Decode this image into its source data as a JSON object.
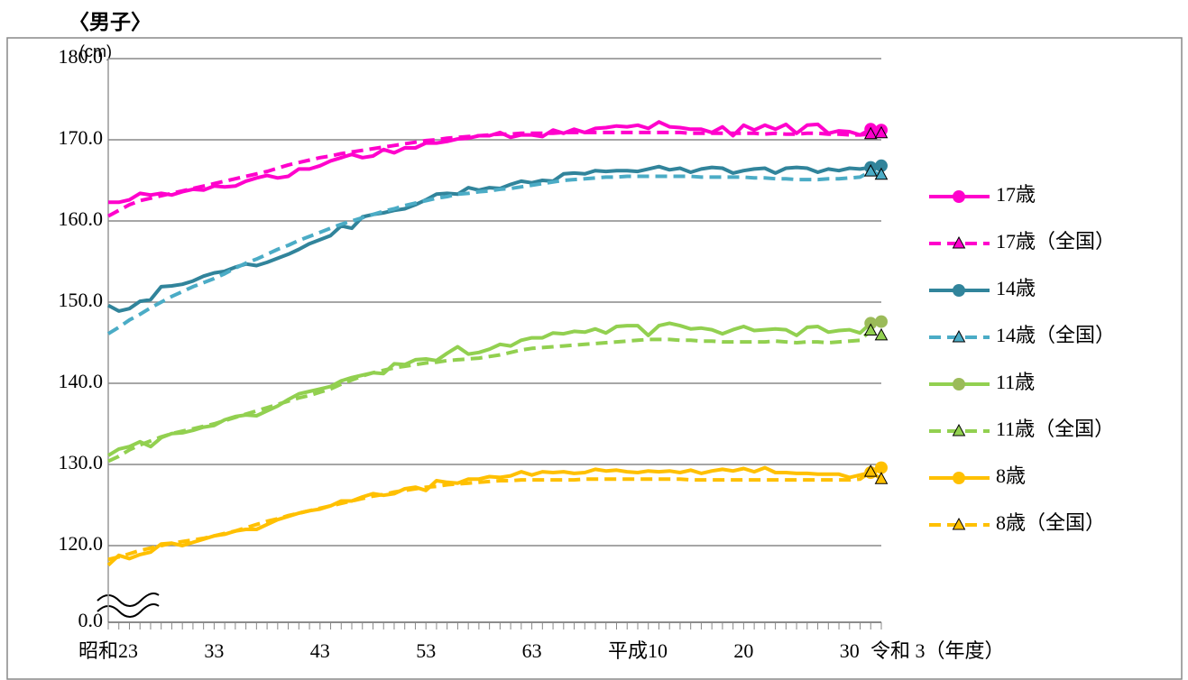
{
  "chart_data": {
    "type": "line",
    "title": "〈男子〉",
    "y_label": "(cm)",
    "categories": [
      "昭和23",
      null,
      null,
      null,
      null,
      null,
      null,
      null,
      null,
      null,
      "33",
      null,
      null,
      null,
      null,
      null,
      null,
      null,
      null,
      null,
      "43",
      null,
      null,
      null,
      null,
      null,
      null,
      null,
      null,
      null,
      "53",
      null,
      null,
      null,
      null,
      null,
      null,
      null,
      null,
      null,
      "63",
      null,
      null,
      null,
      null,
      null,
      null,
      null,
      null,
      null,
      "平成10",
      null,
      null,
      null,
      null,
      null,
      null,
      null,
      null,
      null,
      "20",
      null,
      null,
      null,
      null,
      null,
      null,
      null,
      null,
      null,
      "30",
      null,
      null,
      "令和 3（年度）"
    ],
    "ylim": [
      0,
      180
    ],
    "axis_break": true,
    "grid": true,
    "legend": "right",
    "yticks": [
      {
        "value": 0,
        "label": "0.0"
      },
      {
        "value": 120,
        "label": "120.0"
      },
      {
        "value": 130,
        "label": "130.0"
      },
      {
        "value": 140,
        "label": "140.0"
      },
      {
        "value": 150,
        "label": "150.0"
      },
      {
        "value": 160,
        "label": "160.0"
      },
      {
        "value": 170,
        "label": "170.0"
      },
      {
        "value": 180,
        "label": "180.0"
      }
    ],
    "series": [
      {
        "name": "17歳",
        "color": "#ff00cc",
        "marker": "circle",
        "dashed": false,
        "values": [
          162.3,
          162.3,
          162.6,
          163.4,
          163.2,
          163.4,
          163.2,
          163.6,
          163.9,
          163.8,
          164.3,
          164.2,
          164.3,
          164.9,
          165.3,
          165.6,
          165.3,
          165.5,
          166.4,
          166.4,
          166.8,
          167.4,
          167.8,
          168.2,
          167.8,
          168.0,
          168.8,
          168.4,
          169.0,
          169.0,
          169.6,
          169.6,
          169.8,
          170.1,
          170.2,
          170.5,
          170.5,
          170.9,
          170.3,
          170.6,
          170.6,
          170.4,
          171.2,
          170.8,
          171.3,
          170.9,
          171.4,
          171.5,
          171.7,
          171.6,
          171.8,
          171.4,
          172.2,
          171.6,
          171.5,
          171.3,
          171.3,
          170.9,
          171.6,
          170.5,
          171.8,
          171.2,
          171.8,
          171.3,
          171.9,
          170.8,
          171.8,
          171.9,
          170.8,
          171.1,
          171.0,
          170.6,
          171.3,
          171.2
        ]
      },
      {
        "name": "17歳（全国）",
        "color": "#ff00cc",
        "marker": "triangle",
        "dashed": true,
        "values": [
          160.6,
          161.3,
          162.0,
          162.5,
          162.8,
          163.1,
          163.4,
          163.7,
          164.0,
          164.3,
          164.6,
          164.9,
          165.2,
          165.5,
          165.8,
          166.1,
          166.5,
          166.9,
          167.2,
          167.5,
          167.8,
          168.0,
          168.3,
          168.5,
          168.7,
          168.9,
          169.1,
          169.3,
          169.5,
          169.7,
          169.9,
          170.0,
          170.2,
          170.3,
          170.4,
          170.5,
          170.6,
          170.7,
          170.7,
          170.8,
          170.8,
          170.8,
          170.8,
          170.9,
          170.9,
          170.9,
          170.9,
          170.9,
          170.9,
          170.9,
          170.9,
          170.9,
          170.9,
          170.9,
          170.9,
          170.8,
          170.8,
          170.8,
          170.8,
          170.8,
          170.8,
          170.8,
          170.7,
          170.8,
          170.7,
          170.7,
          170.8,
          170.8,
          170.7,
          170.7,
          170.6,
          170.6,
          170.7,
          170.8
        ]
      },
      {
        "name": "14歳",
        "color": "#31849b",
        "marker": "circle",
        "dashed": false,
        "values": [
          149.6,
          148.9,
          149.2,
          150.1,
          150.3,
          151.9,
          152.0,
          152.2,
          152.6,
          153.2,
          153.6,
          153.8,
          154.3,
          154.7,
          154.5,
          154.9,
          155.4,
          155.9,
          156.5,
          157.2,
          157.7,
          158.2,
          159.4,
          159.1,
          160.5,
          160.8,
          161.0,
          161.3,
          161.5,
          162.0,
          162.6,
          163.3,
          163.4,
          163.3,
          164.1,
          163.8,
          164.1,
          164.0,
          164.5,
          164.9,
          164.7,
          165.0,
          164.9,
          165.8,
          165.9,
          165.8,
          166.2,
          166.1,
          166.2,
          166.2,
          166.1,
          166.4,
          166.7,
          166.3,
          166.5,
          166.0,
          166.4,
          166.6,
          166.5,
          165.9,
          166.2,
          166.4,
          166.5,
          165.9,
          166.5,
          166.6,
          166.5,
          166.0,
          166.4,
          166.2,
          166.5,
          166.4,
          166.6,
          166.8
        ]
      },
      {
        "name": "14歳（全国）",
        "color": "#4bacc6",
        "marker": "triangle",
        "dashed": true,
        "values": [
          146.1,
          146.9,
          147.8,
          148.5,
          149.3,
          150.0,
          150.7,
          151.3,
          151.9,
          152.4,
          152.9,
          153.5,
          154.2,
          154.8,
          155.3,
          155.9,
          156.5,
          157.0,
          157.6,
          158.1,
          158.6,
          159.1,
          159.6,
          160.0,
          160.4,
          160.8,
          161.2,
          161.5,
          161.9,
          162.2,
          162.5,
          162.8,
          163.0,
          163.3,
          163.4,
          163.6,
          163.7,
          163.9,
          164.0,
          164.2,
          164.4,
          164.6,
          164.8,
          165.0,
          165.1,
          165.2,
          165.3,
          165.4,
          165.4,
          165.5,
          165.5,
          165.5,
          165.5,
          165.5,
          165.5,
          165.5,
          165.4,
          165.4,
          165.4,
          165.4,
          165.4,
          165.3,
          165.3,
          165.2,
          165.2,
          165.1,
          165.1,
          165.1,
          165.2,
          165.2,
          165.3,
          165.4,
          166.1,
          165.7
        ]
      },
      {
        "name": "11歳",
        "color": "#92d050",
        "marker": "circle",
        "marker_color": "#9bbb59",
        "dashed": false,
        "values": [
          131.1,
          131.9,
          132.2,
          132.8,
          132.2,
          133.3,
          133.8,
          133.9,
          134.2,
          134.6,
          134.8,
          135.5,
          135.9,
          136.1,
          136.0,
          136.6,
          137.2,
          138.0,
          138.7,
          139.0,
          139.3,
          139.6,
          140.3,
          140.7,
          141.0,
          141.3,
          141.2,
          142.4,
          142.3,
          142.9,
          143.0,
          142.8,
          143.7,
          144.5,
          143.6,
          143.8,
          144.2,
          144.8,
          144.6,
          145.3,
          145.6,
          145.6,
          146.2,
          146.1,
          146.4,
          146.3,
          146.7,
          146.2,
          147.0,
          147.1,
          147.1,
          145.9,
          147.1,
          147.4,
          147.1,
          146.7,
          146.8,
          146.6,
          146.1,
          146.6,
          147.0,
          146.5,
          146.6,
          146.7,
          146.6,
          145.9,
          146.9,
          147.0,
          146.3,
          146.5,
          146.6,
          146.2,
          147.4,
          147.6
        ]
      },
      {
        "name": "11歳（全国）",
        "color": "#92d050",
        "marker": "triangle",
        "dashed": true,
        "values": [
          130.4,
          131.0,
          131.8,
          132.4,
          132.9,
          133.4,
          133.8,
          134.1,
          134.4,
          134.7,
          135.0,
          135.4,
          135.8,
          136.2,
          136.6,
          137.0,
          137.4,
          137.8,
          138.2,
          138.5,
          138.9,
          139.3,
          139.9,
          140.4,
          140.9,
          141.3,
          141.6,
          141.9,
          142.1,
          142.3,
          142.5,
          142.6,
          142.8,
          142.9,
          143.0,
          143.1,
          143.3,
          143.5,
          143.8,
          144.1,
          144.3,
          144.4,
          144.5,
          144.6,
          144.7,
          144.8,
          144.9,
          145.0,
          145.1,
          145.2,
          145.3,
          145.4,
          145.4,
          145.4,
          145.3,
          145.3,
          145.2,
          145.2,
          145.1,
          145.1,
          145.1,
          145.1,
          145.1,
          145.2,
          145.1,
          145.0,
          145.1,
          145.1,
          145.0,
          145.1,
          145.2,
          145.3,
          146.5,
          145.9
        ]
      },
      {
        "name": "8歳",
        "color": "#ffc000",
        "marker": "circle",
        "dashed": false,
        "values": [
          117.6,
          118.8,
          118.4,
          118.9,
          119.2,
          120.2,
          120.3,
          120.0,
          120.4,
          120.8,
          121.2,
          121.4,
          121.8,
          122.0,
          122.0,
          122.6,
          123.2,
          123.6,
          124.0,
          124.3,
          124.5,
          124.9,
          125.5,
          125.5,
          126.0,
          126.4,
          126.2,
          126.4,
          127.0,
          127.2,
          126.8,
          128.0,
          127.8,
          127.7,
          128.2,
          128.2,
          128.5,
          128.4,
          128.6,
          129.1,
          128.7,
          129.1,
          129.0,
          129.1,
          128.9,
          129.0,
          129.4,
          129.2,
          129.3,
          129.1,
          129.0,
          129.2,
          129.1,
          129.2,
          129.0,
          129.3,
          128.9,
          129.2,
          129.4,
          129.2,
          129.5,
          129.1,
          129.6,
          129.0,
          129.0,
          128.9,
          128.9,
          128.8,
          128.8,
          128.8,
          128.4,
          128.7,
          129.0,
          129.6
        ]
      },
      {
        "name": "8歳（全国）",
        "color": "#ffc000",
        "marker": "triangle",
        "dashed": true,
        "values": [
          118.3,
          118.6,
          119.0,
          119.4,
          119.7,
          120.0,
          120.3,
          120.5,
          120.7,
          120.9,
          121.2,
          121.5,
          121.8,
          122.2,
          122.6,
          123.0,
          123.3,
          123.7,
          124.0,
          124.3,
          124.6,
          124.9,
          125.2,
          125.5,
          125.8,
          126.1,
          126.3,
          126.6,
          126.8,
          127.0,
          127.2,
          127.3,
          127.5,
          127.6,
          127.7,
          127.8,
          127.9,
          128.0,
          128.0,
          128.1,
          128.1,
          128.1,
          128.1,
          128.1,
          128.1,
          128.2,
          128.2,
          128.2,
          128.2,
          128.2,
          128.2,
          128.2,
          128.2,
          128.2,
          128.2,
          128.1,
          128.1,
          128.1,
          128.1,
          128.1,
          128.1,
          128.1,
          128.1,
          128.1,
          128.1,
          128.1,
          128.1,
          128.1,
          128.1,
          128.1,
          128.1,
          128.2,
          129.1,
          128.2
        ]
      }
    ]
  }
}
